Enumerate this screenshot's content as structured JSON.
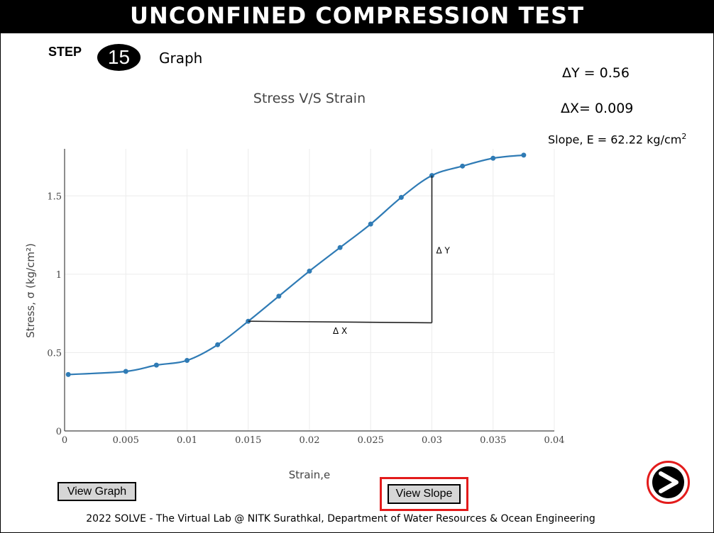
{
  "header": {
    "title": "UNCONFINED COMPRESSION TEST"
  },
  "step": {
    "label": "STEP",
    "number": "15",
    "name": "Graph"
  },
  "results": {
    "delta_y": "ΔY = 0.56",
    "delta_x": "ΔX= 0.009",
    "slope_text": "Slope, E = 62.22 kg/cm",
    "slope_sup": "2"
  },
  "buttons": {
    "view_graph": "View Graph",
    "view_slope": "View Slope",
    "next_icon": "next-arrow"
  },
  "footer": {
    "text": "2022 SOLVE - The Virtual Lab @ NITK Surathkal, Department of Water Resources & Ocean Engineering"
  },
  "chart_data": {
    "type": "line",
    "title": "Stress V/S Strain",
    "xlabel": "Strain,e",
    "ylabel": "Stress, σ (kg/cm²)",
    "xlim": [
      0,
      0.04
    ],
    "ylim": [
      0,
      1.8
    ],
    "x_ticks": [
      "0",
      "0.005",
      "0.01",
      "0.015",
      "0.02",
      "0.025",
      "0.03",
      "0.035",
      "0.04"
    ],
    "y_ticks": [
      "0",
      "0.5",
      "1",
      "1.5"
    ],
    "grid": true,
    "series": [
      {
        "color": "#2f7bb5",
        "x": [
          0.0003,
          0.005,
          0.0075,
          0.01,
          0.0125,
          0.015,
          0.0175,
          0.02,
          0.0225,
          0.025,
          0.0275,
          0.03,
          0.0325,
          0.035,
          0.0375
        ],
        "y": [
          0.36,
          0.38,
          0.42,
          0.45,
          0.55,
          0.7,
          0.86,
          1.02,
          1.17,
          1.32,
          1.49,
          1.63,
          1.69,
          1.74,
          1.76
        ]
      }
    ],
    "slope_triangle": {
      "x1": 0.015,
      "y1": 0.7,
      "x2": 0.03,
      "y2": 0.69,
      "y_top": 1.63,
      "dx_label": "Δ X",
      "dy_label": "Δ Y"
    }
  }
}
